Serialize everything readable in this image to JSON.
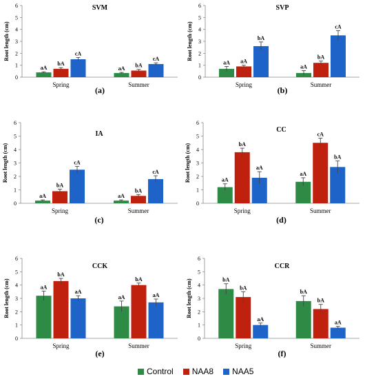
{
  "colors": {
    "Control": "#2e8b45",
    "NAA8": "#c0210f",
    "NAA5": "#1e63c8"
  },
  "legend": {
    "items": [
      {
        "name": "Control",
        "color": "#2e8b45"
      },
      {
        "name": "NAA8",
        "color": "#c0210f"
      },
      {
        "name": "NAA5",
        "color": "#1e63c8"
      }
    ]
  },
  "chart_data": [
    {
      "type": "bar",
      "title": "SVM",
      "panel_label": "(a)",
      "ylabel": "Root length (cm)",
      "ylim": [
        0,
        6
      ],
      "yticks": [
        0,
        1,
        2,
        3,
        4,
        5,
        6
      ],
      "categories": [
        "Spring",
        "Summer"
      ],
      "series": [
        {
          "name": "Control",
          "values": [
            0.4,
            0.35
          ],
          "errors": [
            0.05,
            0.05
          ],
          "labels": [
            "aA",
            "aA"
          ]
        },
        {
          "name": "NAA8",
          "values": [
            0.7,
            0.55
          ],
          "errors": [
            0.1,
            0.1
          ],
          "labels": [
            "bA",
            "bA"
          ]
        },
        {
          "name": "NAA5",
          "values": [
            1.5,
            1.1
          ],
          "errors": [
            0.15,
            0.1
          ],
          "labels": [
            "cA",
            "cA"
          ]
        }
      ]
    },
    {
      "type": "bar",
      "title": "SVP",
      "panel_label": "(b)",
      "ylabel": "Root length (cm)",
      "ylim": [
        0,
        6
      ],
      "yticks": [
        0,
        1,
        2,
        3,
        4,
        5,
        6
      ],
      "categories": [
        "Spring",
        "Summer"
      ],
      "series": [
        {
          "name": "Control",
          "values": [
            0.7,
            0.35
          ],
          "errors": [
            0.2,
            0.2
          ],
          "labels": [
            "aA",
            "aA"
          ]
        },
        {
          "name": "NAA8",
          "values": [
            0.9,
            1.2
          ],
          "errors": [
            0.1,
            0.15
          ],
          "labels": [
            "aA",
            "bA"
          ]
        },
        {
          "name": "NAA5",
          "values": [
            2.6,
            3.5
          ],
          "errors": [
            0.35,
            0.4
          ],
          "labels": [
            "bA",
            "cA"
          ]
        }
      ]
    },
    {
      "type": "bar",
      "title": "IA",
      "panel_label": "(c)",
      "ylabel": "Root length (cm)",
      "ylim": [
        0,
        6
      ],
      "yticks": [
        0,
        1,
        2,
        3,
        4,
        5,
        6
      ],
      "categories": [
        "Spring",
        "Summer"
      ],
      "series": [
        {
          "name": "Control",
          "values": [
            0.2,
            0.2
          ],
          "errors": [
            0.05,
            0.05
          ],
          "labels": [
            "aA",
            "aA"
          ]
        },
        {
          "name": "NAA8",
          "values": [
            0.9,
            0.55
          ],
          "errors": [
            0.15,
            0.1
          ],
          "labels": [
            "bA",
            "bA"
          ]
        },
        {
          "name": "NAA5",
          "values": [
            2.5,
            1.8
          ],
          "errors": [
            0.25,
            0.25
          ],
          "labels": [
            "cA",
            "cA"
          ]
        }
      ]
    },
    {
      "type": "bar",
      "title": "CC",
      "panel_label": "(d)",
      "ylabel": "Root length (cm)",
      "ylim": [
        0,
        6
      ],
      "yticks": [
        0,
        1,
        2,
        3,
        4,
        5,
        6
      ],
      "categories": [
        "Spring",
        "Summer"
      ],
      "series": [
        {
          "name": "Control",
          "values": [
            1.2,
            1.6
          ],
          "errors": [
            0.25,
            0.3
          ],
          "labels": [
            "aA",
            "aA"
          ]
        },
        {
          "name": "NAA8",
          "values": [
            3.8,
            4.5
          ],
          "errors": [
            0.3,
            0.35
          ],
          "labels": [
            "bA",
            "cA"
          ]
        },
        {
          "name": "NAA5",
          "values": [
            1.9,
            2.7
          ],
          "errors": [
            0.45,
            0.45
          ],
          "labels": [
            "aA",
            "bA"
          ]
        }
      ]
    },
    {
      "type": "bar",
      "title": "CCK",
      "panel_label": "(e)",
      "ylabel": "Root length (cm)",
      "ylim": [
        0,
        6
      ],
      "yticks": [
        0,
        1,
        2,
        3,
        4,
        5,
        6
      ],
      "categories": [
        "Spring",
        "Summer"
      ],
      "series": [
        {
          "name": "Control",
          "values": [
            3.2,
            2.4
          ],
          "errors": [
            0.35,
            0.4
          ],
          "labels": [
            "aA",
            "aA"
          ]
        },
        {
          "name": "NAA8",
          "values": [
            4.3,
            4.0
          ],
          "errors": [
            0.2,
            0.15
          ],
          "labels": [
            "bA",
            "bA"
          ]
        },
        {
          "name": "NAA5",
          "values": [
            3.0,
            2.7
          ],
          "errors": [
            0.2,
            0.25
          ],
          "labels": [
            "aA",
            "aA"
          ]
        }
      ]
    },
    {
      "type": "bar",
      "title": "CCR",
      "panel_label": "(f)",
      "ylabel": "Root length (cm)",
      "ylim": [
        0,
        6
      ],
      "yticks": [
        0,
        1,
        2,
        3,
        4,
        5,
        6
      ],
      "categories": [
        "Spring",
        "Summer"
      ],
      "series": [
        {
          "name": "Control",
          "values": [
            3.7,
            2.8
          ],
          "errors": [
            0.4,
            0.4
          ],
          "labels": [
            "bA",
            "bA"
          ]
        },
        {
          "name": "NAA8",
          "values": [
            3.1,
            2.2
          ],
          "errors": [
            0.4,
            0.35
          ],
          "labels": [
            "bA",
            "bA"
          ]
        },
        {
          "name": "NAA5",
          "values": [
            1.0,
            0.8
          ],
          "errors": [
            0.15,
            0.1
          ],
          "labels": [
            "aA",
            "aA"
          ]
        }
      ]
    }
  ]
}
